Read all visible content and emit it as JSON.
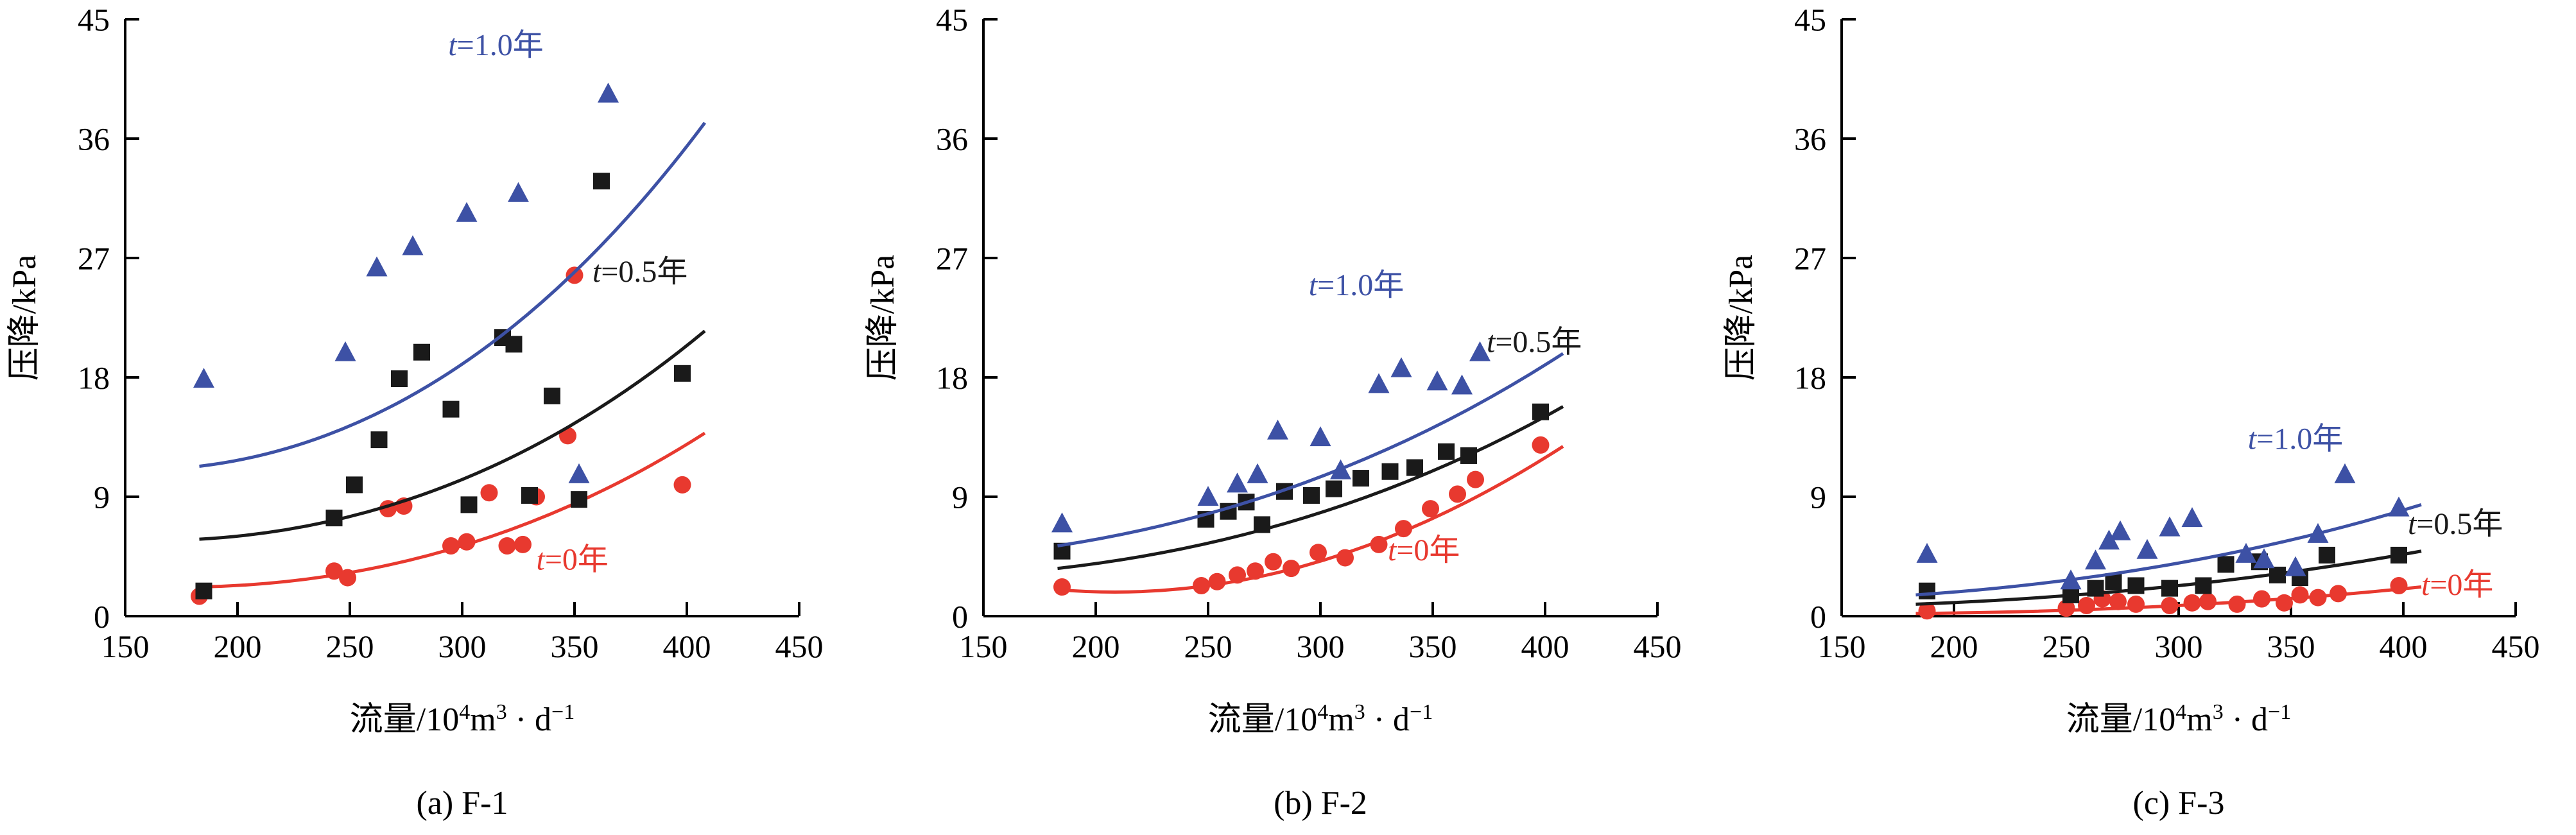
{
  "page": {
    "background": "#ffffff"
  },
  "chart_data": [
    {
      "type": "scatter",
      "title": "(a) F-1",
      "xlabel": "流量/10⁴m³ · d⁻¹",
      "xlabel_parts": [
        {
          "text": "流量/10",
          "sup": false
        },
        {
          "text": "4",
          "sup": true
        },
        {
          "text": "m",
          "sup": false
        },
        {
          "text": "3",
          "sup": true
        },
        {
          "text": " · d",
          "sup": false
        },
        {
          "text": "−1",
          "sup": true
        }
      ],
      "ylabel": "压降/kPa",
      "xlim": [
        150,
        450
      ],
      "ylim": [
        0,
        45
      ],
      "xticks": [
        150,
        200,
        250,
        300,
        350,
        400,
        450
      ],
      "yticks": [
        0,
        9,
        18,
        27,
        36,
        45
      ],
      "grid": false,
      "legend_position": "inline-labels",
      "series": [
        {
          "name": "t=0年",
          "color": "#E8392F",
          "marker": "circle",
          "points": [
            [
              183,
              1.5
            ],
            [
              243,
              3.4
            ],
            [
              249,
              2.9
            ],
            [
              267,
              8.1
            ],
            [
              274,
              8.3
            ],
            [
              295,
              5.3
            ],
            [
              302,
              5.6
            ],
            [
              312,
              9.3
            ],
            [
              320,
              5.3
            ],
            [
              327,
              5.4
            ],
            [
              333,
              9.0
            ],
            [
              347,
              13.6
            ],
            [
              350,
              25.7
            ],
            [
              398,
              9.9
            ]
          ],
          "fit": [
            [
              183,
              2.2
            ],
            [
              300,
              5.3
            ],
            [
              408,
              13.8
            ]
          ],
          "label_xy": [
            333,
            3.5
          ],
          "label_anchor": "start"
        },
        {
          "name": "t=0.5年",
          "color": "#1A1A1A",
          "marker": "square",
          "points": [
            [
              185,
              1.9
            ],
            [
              243,
              7.4
            ],
            [
              252,
              9.9
            ],
            [
              263,
              13.3
            ],
            [
              272,
              17.9
            ],
            [
              282,
              19.9
            ],
            [
              295,
              15.6
            ],
            [
              303,
              8.4
            ],
            [
              318,
              21.0
            ],
            [
              323,
              20.5
            ],
            [
              330,
              9.1
            ],
            [
              340,
              16.6
            ],
            [
              352,
              8.8
            ],
            [
              362,
              32.8
            ],
            [
              398,
              18.3
            ]
          ],
          "fit": [
            [
              183,
              5.8
            ],
            [
              300,
              10.3
            ],
            [
              408,
              21.5
            ]
          ],
          "label_xy": [
            358,
            25.2
          ],
          "label_anchor": "start"
        },
        {
          "name": "t=1.0年",
          "color": "#3D51A5",
          "marker": "triangle",
          "points": [
            [
              185,
              17.8
            ],
            [
              248,
              19.8
            ],
            [
              262,
              26.2
            ],
            [
              278,
              27.8
            ],
            [
              302,
              30.3
            ],
            [
              325,
              31.8
            ],
            [
              352,
              10.6
            ],
            [
              365,
              39.3
            ]
          ],
          "fit": [
            [
              183,
              11.3
            ],
            [
              300,
              19.0
            ],
            [
              408,
              37.2
            ]
          ],
          "label_xy": [
            315,
            42.3
          ],
          "label_anchor": "middle"
        }
      ]
    },
    {
      "type": "scatter",
      "title": "(b) F-2",
      "xlabel": "流量/10⁴m³ · d⁻¹",
      "xlabel_parts": [
        {
          "text": "流量/10",
          "sup": false
        },
        {
          "text": "4",
          "sup": true
        },
        {
          "text": "m",
          "sup": false
        },
        {
          "text": "3",
          "sup": true
        },
        {
          "text": " · d",
          "sup": false
        },
        {
          "text": "−1",
          "sup": true
        }
      ],
      "ylabel": "压降/kPa",
      "xlim": [
        150,
        450
      ],
      "ylim": [
        0,
        45
      ],
      "xticks": [
        150,
        200,
        250,
        300,
        350,
        400,
        450
      ],
      "yticks": [
        0,
        9,
        18,
        27,
        36,
        45
      ],
      "grid": false,
      "legend_position": "inline-labels",
      "series": [
        {
          "name": "t=0年",
          "color": "#E8392F",
          "marker": "circle",
          "points": [
            [
              185,
              2.2
            ],
            [
              247,
              2.3
            ],
            [
              254,
              2.6
            ],
            [
              263,
              3.1
            ],
            [
              271,
              3.4
            ],
            [
              279,
              4.1
            ],
            [
              287,
              3.6
            ],
            [
              299,
              4.8
            ],
            [
              311,
              4.4
            ],
            [
              326,
              5.4
            ],
            [
              337,
              6.6
            ],
            [
              349,
              8.1
            ],
            [
              361,
              9.2
            ],
            [
              369,
              10.3
            ],
            [
              398,
              12.9
            ]
          ],
          "fit": [
            [
              183,
              2.0
            ],
            [
              295,
              3.9
            ],
            [
              408,
              12.8
            ]
          ],
          "label_xy": [
            330,
            4.2
          ],
          "label_anchor": "start"
        },
        {
          "name": "t=0.5年",
          "color": "#1A1A1A",
          "marker": "square",
          "points": [
            [
              185,
              4.9
            ],
            [
              249,
              7.3
            ],
            [
              259,
              7.9
            ],
            [
              267,
              8.6
            ],
            [
              274,
              6.9
            ],
            [
              284,
              9.4
            ],
            [
              296,
              9.1
            ],
            [
              306,
              9.6
            ],
            [
              318,
              10.4
            ],
            [
              331,
              10.9
            ],
            [
              342,
              11.2
            ],
            [
              356,
              12.4
            ],
            [
              366,
              12.1
            ],
            [
              398,
              15.4
            ]
          ],
          "fit": [
            [
              183,
              3.6
            ],
            [
              300,
              7.8
            ],
            [
              408,
              15.8
            ]
          ],
          "label_xy": [
            374,
            19.9
          ],
          "label_anchor": "start"
        },
        {
          "name": "t=1.0年",
          "color": "#3D51A5",
          "marker": "triangle",
          "points": [
            [
              185,
              6.9
            ],
            [
              250,
              8.9
            ],
            [
              263,
              9.9
            ],
            [
              272,
              10.6
            ],
            [
              281,
              13.9
            ],
            [
              300,
              13.4
            ],
            [
              309,
              10.9
            ],
            [
              326,
              17.4
            ],
            [
              336,
              18.6
            ],
            [
              352,
              17.6
            ],
            [
              363,
              17.3
            ],
            [
              371,
              19.8
            ]
          ],
          "fit": [
            [
              183,
              5.3
            ],
            [
              300,
              10.5
            ],
            [
              408,
              19.8
            ]
          ],
          "label_xy": [
            316,
            24.2
          ],
          "label_anchor": "middle"
        }
      ]
    },
    {
      "type": "scatter",
      "title": "(c) F-3",
      "xlabel": "流量/10⁴m³ · d⁻¹",
      "xlabel_parts": [
        {
          "text": "流量/10",
          "sup": false
        },
        {
          "text": "4",
          "sup": true
        },
        {
          "text": "m",
          "sup": false
        },
        {
          "text": "3",
          "sup": true
        },
        {
          "text": " · d",
          "sup": false
        },
        {
          "text": "−1",
          "sup": true
        }
      ],
      "ylabel": "压降/kPa",
      "xlim": [
        150,
        450
      ],
      "ylim": [
        0,
        45
      ],
      "xticks": [
        150,
        200,
        250,
        300,
        350,
        400,
        450
      ],
      "yticks": [
        0,
        9,
        18,
        27,
        36,
        45
      ],
      "grid": false,
      "legend_position": "inline-labels",
      "series": [
        {
          "name": "t=0年",
          "color": "#E8392F",
          "marker": "circle",
          "points": [
            [
              188,
              0.4
            ],
            [
              250,
              0.6
            ],
            [
              259,
              0.8
            ],
            [
              266,
              1.3
            ],
            [
              273,
              1.1
            ],
            [
              281,
              0.9
            ],
            [
              296,
              0.8
            ],
            [
              306,
              1.0
            ],
            [
              313,
              1.1
            ],
            [
              326,
              0.9
            ],
            [
              337,
              1.3
            ],
            [
              347,
              1.0
            ],
            [
              354,
              1.6
            ],
            [
              362,
              1.4
            ],
            [
              371,
              1.7
            ],
            [
              398,
              2.3
            ]
          ],
          "fit": [
            [
              183,
              0.2
            ],
            [
              300,
              0.8
            ],
            [
              408,
              2.2
            ]
          ],
          "label_xy": [
            408,
            1.6
          ],
          "label_anchor": "start"
        },
        {
          "name": "t=0.5年",
          "color": "#1A1A1A",
          "marker": "square",
          "points": [
            [
              188,
              1.9
            ],
            [
              252,
              1.6
            ],
            [
              263,
              2.1
            ],
            [
              271,
              2.6
            ],
            [
              281,
              2.3
            ],
            [
              296,
              2.1
            ],
            [
              311,
              2.3
            ],
            [
              321,
              3.9
            ],
            [
              336,
              4.1
            ],
            [
              344,
              3.1
            ],
            [
              354,
              2.9
            ],
            [
              366,
              4.6
            ],
            [
              398,
              4.6
            ]
          ],
          "fit": [
            [
              183,
              0.9
            ],
            [
              300,
              2.3
            ],
            [
              408,
              4.9
            ]
          ],
          "label_xy": [
            402,
            6.2
          ],
          "label_anchor": "start"
        },
        {
          "name": "t=1.0年",
          "color": "#3D51A5",
          "marker": "triangle",
          "points": [
            [
              188,
              4.6
            ],
            [
              252,
              2.6
            ],
            [
              263,
              4.1
            ],
            [
              269,
              5.6
            ],
            [
              274,
              6.3
            ],
            [
              286,
              4.9
            ],
            [
              296,
              6.6
            ],
            [
              306,
              7.3
            ],
            [
              330,
              4.6
            ],
            [
              338,
              4.2
            ],
            [
              352,
              3.6
            ],
            [
              362,
              6.1
            ],
            [
              374,
              10.6
            ],
            [
              398,
              8.1
            ]
          ],
          "fit": [
            [
              183,
              1.6
            ],
            [
              300,
              4.0
            ],
            [
              408,
              8.4
            ]
          ],
          "label_xy": [
            352,
            12.6
          ],
          "label_anchor": "middle"
        }
      ]
    }
  ]
}
